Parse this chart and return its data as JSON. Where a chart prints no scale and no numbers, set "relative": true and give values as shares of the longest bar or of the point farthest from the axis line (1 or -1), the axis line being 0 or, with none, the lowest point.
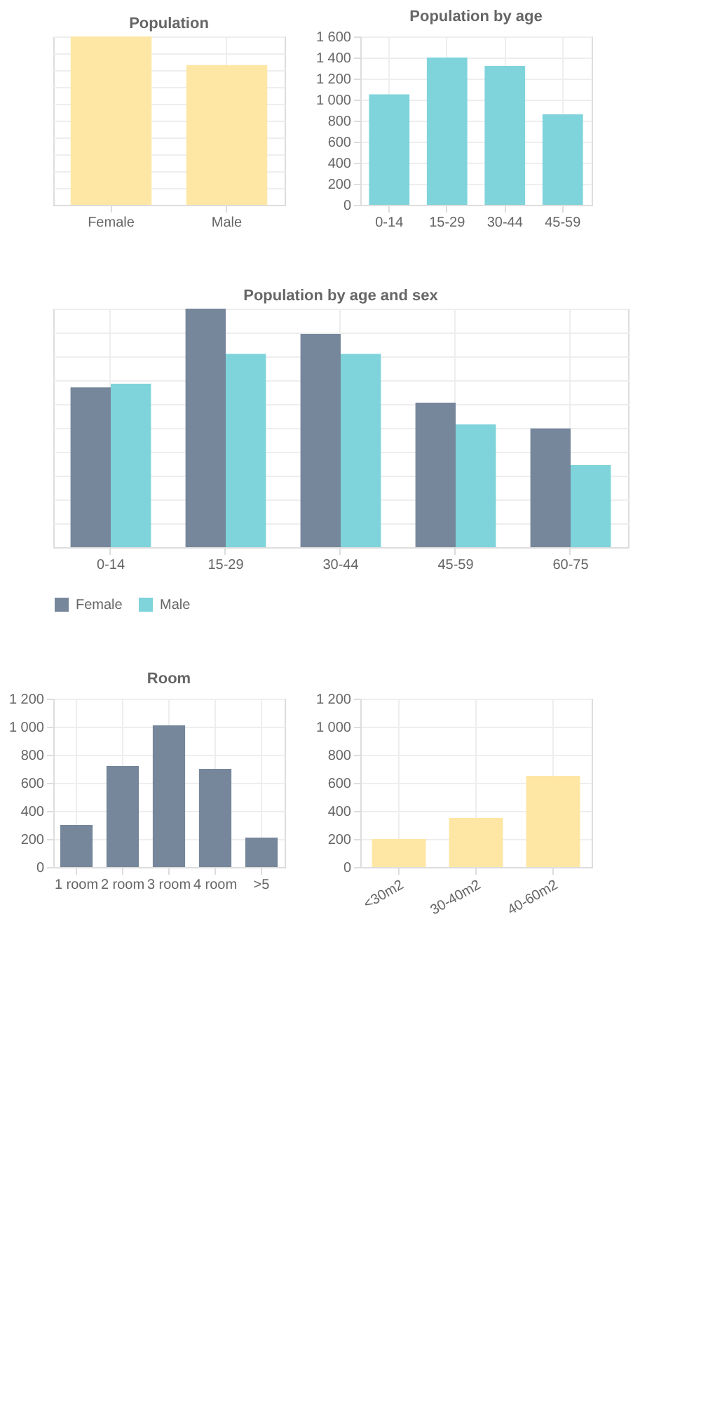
{
  "chart_data": [
    {
      "type": "bar",
      "title": "Population",
      "categories": [
        "Female",
        "Male"
      ],
      "relative": true,
      "grid": true,
      "color": "#fee6a0",
      "values": [
        1,
        0.83
      ]
    },
    {
      "type": "bar",
      "title": "Population by age",
      "categories": [
        "0-14",
        "15-29",
        "30-44",
        "45-59"
      ],
      "color": "#77d2d8",
      "values": [
        1050,
        1400,
        1320,
        860
      ],
      "ylim": [
        0,
        1600
      ],
      "yticks": [
        0,
        200,
        400,
        600,
        800,
        {
          "value": 1000,
          "label": "1 000"
        },
        {
          "value": 1200,
          "label": "1 200"
        },
        {
          "value": 1400,
          "label": "1 400"
        },
        {
          "value": 1600,
          "label": "1 600"
        }
      ],
      "grid": true
    },
    {
      "type": "bar",
      "title": "Population by age and sex",
      "categories": [
        "0-14",
        "15-29",
        "30-44",
        "45-59",
        "60-75"
      ],
      "relative": true,
      "grid": true,
      "legend": "bottom",
      "series": [
        {
          "name": "Female",
          "color": "#6f8096",
          "values": [
            0.67,
            1,
            0.894,
            0.606,
            0.498
          ]
        },
        {
          "name": "Male",
          "color": "#77d2d8",
          "values": [
            0.685,
            0.81,
            0.81,
            0.515,
            0.344
          ]
        }
      ]
    },
    {
      "type": "bar",
      "title": "Room",
      "categories": [
        "1 room",
        "2 room",
        "3 room",
        "4 room",
        ">5"
      ],
      "color": "#6f8096",
      "values": [
        300,
        720,
        1010,
        700,
        210
      ],
      "ylim": [
        0,
        1200
      ],
      "yticks": [
        0,
        200,
        400,
        600,
        800,
        {
          "value": 1000,
          "label": "1 000"
        },
        {
          "value": 1200,
          "label": "1 200"
        }
      ],
      "grid": true
    },
    {
      "type": "bar",
      "categories": [
        "<30m2",
        "30-40m2",
        "40-60m2"
      ],
      "color": "#fee6a0",
      "values": [
        200,
        350,
        650
      ],
      "ylim": [
        0,
        1200
      ],
      "yticks": [
        0,
        200,
        400,
        600,
        800,
        {
          "value": 1000,
          "label": "1 000"
        },
        {
          "value": 1200,
          "label": "1 200"
        }
      ],
      "grid": true
    }
  ]
}
